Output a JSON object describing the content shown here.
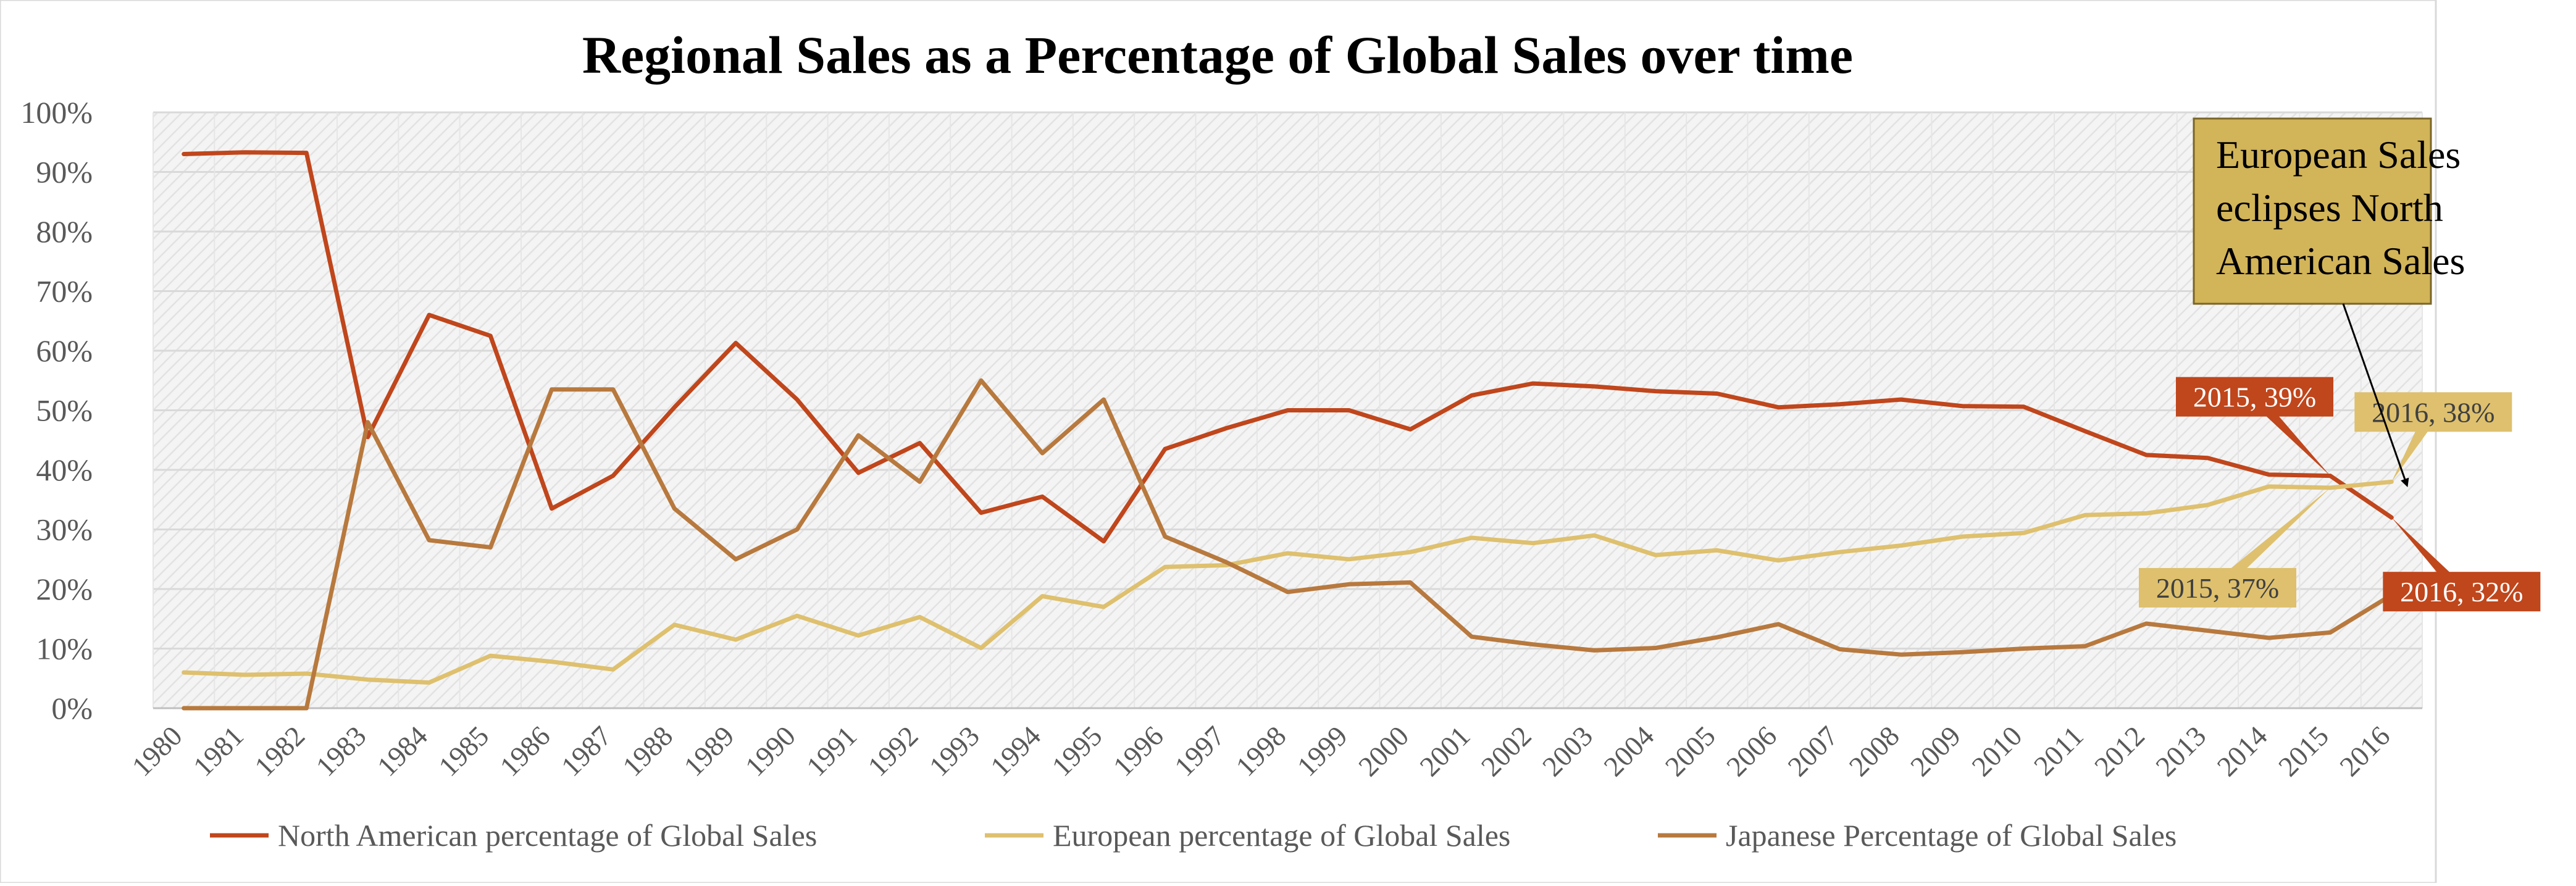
{
  "chart_data": {
    "type": "line",
    "title": "Regional Sales as a Percentage of Global Sales over time",
    "xlabel": "",
    "ylabel": "",
    "ylim": [
      0,
      100
    ],
    "y_ticks": [
      "0%",
      "10%",
      "20%",
      "30%",
      "40%",
      "50%",
      "60%",
      "70%",
      "80%",
      "90%",
      "100%"
    ],
    "grid": true,
    "legend_position": "bottom",
    "categories": [
      "1980",
      "1981",
      "1982",
      "1983",
      "1984",
      "1985",
      "1986",
      "1987",
      "1988",
      "1989",
      "1990",
      "1991",
      "1992",
      "1993",
      "1994",
      "1995",
      "1996",
      "1997",
      "1998",
      "1999",
      "2000",
      "2001",
      "2002",
      "2003",
      "2004",
      "2005",
      "2006",
      "2007",
      "2008",
      "2009",
      "2010",
      "2011",
      "2012",
      "2013",
      "2014",
      "2015",
      "2016"
    ],
    "series": [
      {
        "name": "North American percentage of Global Sales",
        "color": "#C0461C",
        "values": [
          93,
          93.3,
          93.2,
          45.5,
          66,
          62.5,
          33.5,
          39,
          50.5,
          61.3,
          51.8,
          39.5,
          44.5,
          32.8,
          35.5,
          28,
          43.5,
          47,
          50,
          50,
          46.8,
          52.5,
          54.5,
          54,
          53.2,
          52.8,
          50.5,
          51,
          51.8,
          50.7,
          50.6,
          46.5,
          42.5,
          42,
          39.2,
          39,
          32
        ]
      },
      {
        "name": "European percentage of Global Sales",
        "color": "#DEC06E",
        "values": [
          6,
          5.6,
          5.8,
          4.8,
          4.3,
          8.8,
          7.8,
          6.5,
          14,
          11.5,
          15.5,
          12.2,
          15.3,
          10.1,
          18.8,
          17,
          23.7,
          24,
          26,
          25,
          26.2,
          28.6,
          27.7,
          29,
          25.7,
          26.5,
          24.8,
          26.2,
          27.3,
          28.8,
          29.4,
          32.4,
          32.7,
          34.1,
          37.2,
          37,
          38
        ]
      },
      {
        "name": "Japanese Percentage of Global Sales",
        "color": "#B8793E",
        "values": [
          0,
          0,
          0,
          48,
          28.2,
          27,
          53.5,
          53.5,
          33.5,
          25,
          30,
          45.8,
          38,
          55,
          42.8,
          51.8,
          28.8,
          24.5,
          19.5,
          20.8,
          21.1,
          12,
          10.7,
          9.7,
          10.1,
          11.9,
          14.1,
          9.9,
          9,
          9.4,
          10,
          10.4,
          14.2,
          13,
          11.8,
          12.7,
          19
        ]
      }
    ],
    "data_labels": [
      {
        "text": "2015, 39%",
        "series": 0,
        "category": "2015"
      },
      {
        "text": "2016, 38%",
        "series": 1,
        "category": "2016"
      },
      {
        "text": "2015, 37%",
        "series": 1,
        "category": "2015"
      },
      {
        "text": "2016, 32%",
        "series": 0,
        "category": "2016"
      }
    ],
    "annotation": {
      "lines": [
        "European Sales",
        "eclipses North",
        "American Sales"
      ]
    }
  }
}
